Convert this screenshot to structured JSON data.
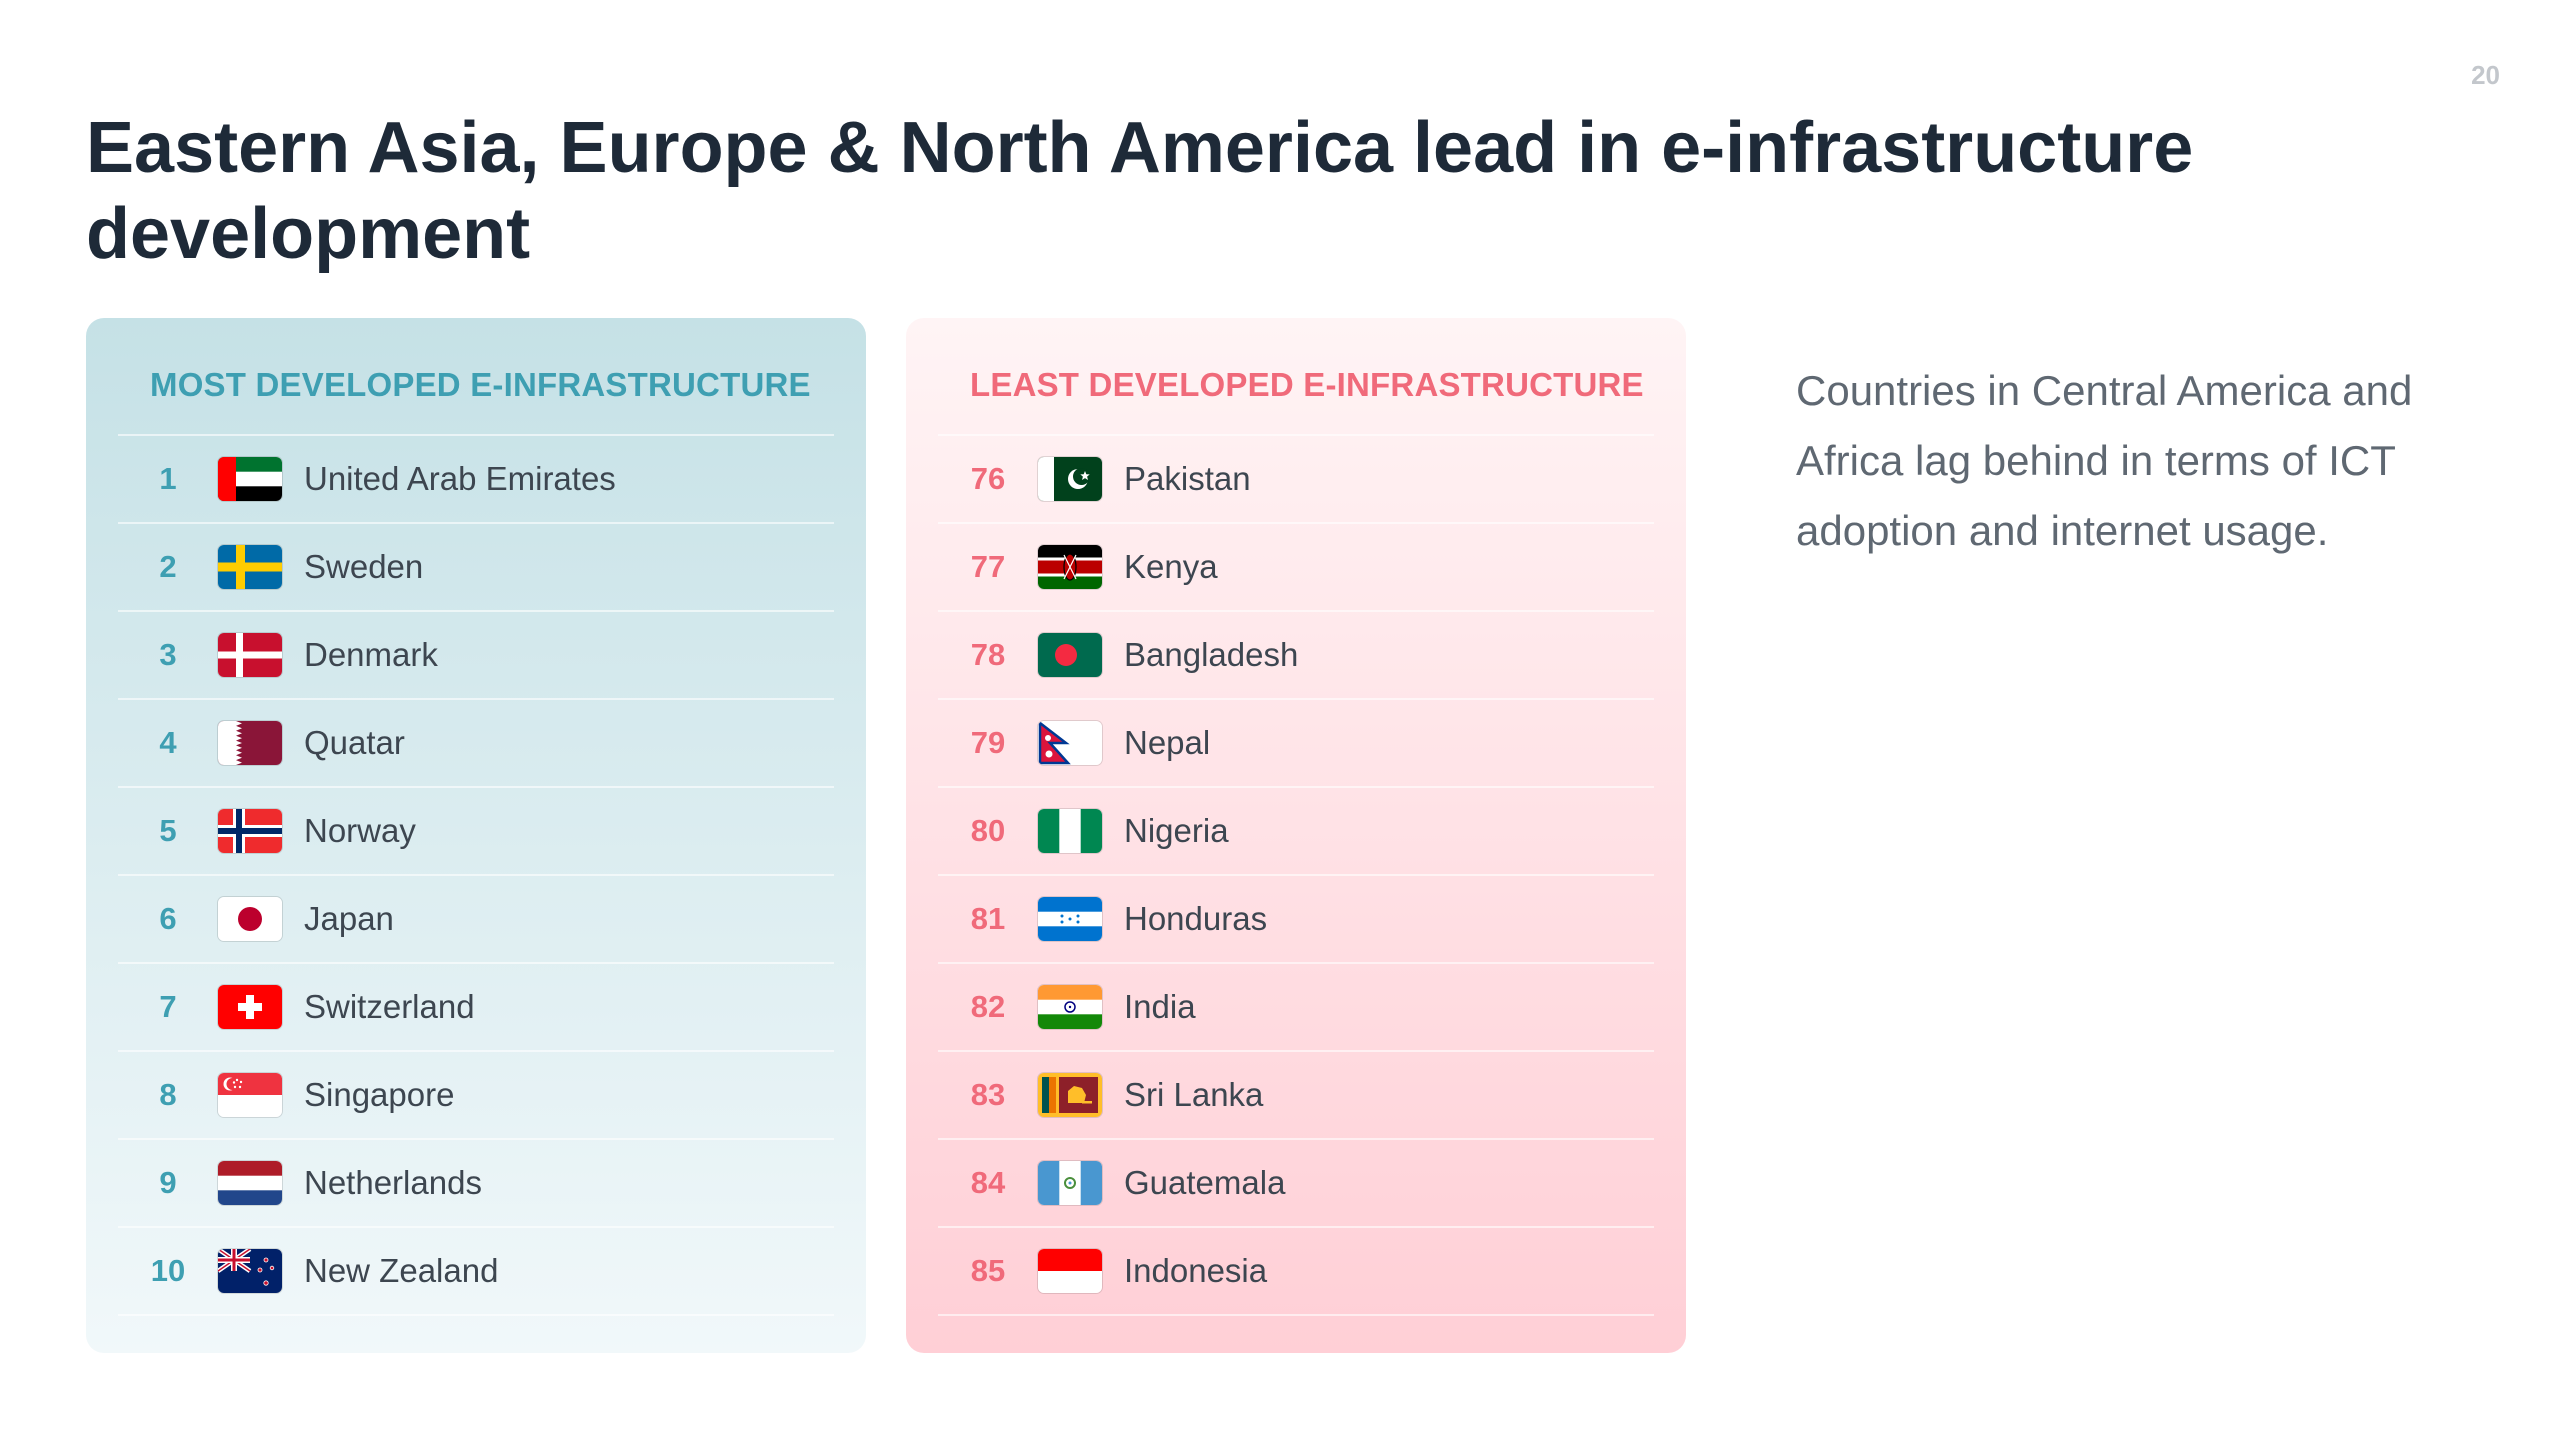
{
  "page_number": "20",
  "title": "Eastern Asia, Europe & North America lead in e-infrastructure development",
  "most": {
    "heading": "MOST DEVELOPED E-INFRASTRUCTURE",
    "rows": [
      {
        "rank": "1",
        "country": "United Arab Emirates",
        "flag": "uae-flag-icon"
      },
      {
        "rank": "2",
        "country": "Sweden",
        "flag": "sweden-flag-icon"
      },
      {
        "rank": "3",
        "country": "Denmark",
        "flag": "denmark-flag-icon"
      },
      {
        "rank": "4",
        "country": "Quatar",
        "flag": "qatar-flag-icon"
      },
      {
        "rank": "5",
        "country": "Norway",
        "flag": "norway-flag-icon"
      },
      {
        "rank": "6",
        "country": "Japan",
        "flag": "japan-flag-icon"
      },
      {
        "rank": "7",
        "country": "Switzerland",
        "flag": "switzerland-flag-icon"
      },
      {
        "rank": "8",
        "country": "Singapore",
        "flag": "singapore-flag-icon"
      },
      {
        "rank": "9",
        "country": "Netherlands",
        "flag": "netherlands-flag-icon"
      },
      {
        "rank": "10",
        "country": "New Zealand",
        "flag": "new-zealand-flag-icon"
      }
    ]
  },
  "least": {
    "heading": "LEAST DEVELOPED E-INFRASTRUCTURE",
    "rows": [
      {
        "rank": "76",
        "country": "Pakistan",
        "flag": "pakistan-flag-icon"
      },
      {
        "rank": "77",
        "country": "Kenya",
        "flag": "kenya-flag-icon"
      },
      {
        "rank": "78",
        "country": "Bangladesh",
        "flag": "bangladesh-flag-icon"
      },
      {
        "rank": "79",
        "country": "Nepal",
        "flag": "nepal-flag-icon"
      },
      {
        "rank": "80",
        "country": "Nigeria",
        "flag": "nigeria-flag-icon"
      },
      {
        "rank": "81",
        "country": "Honduras",
        "flag": "honduras-flag-icon"
      },
      {
        "rank": "82",
        "country": "India",
        "flag": "india-flag-icon"
      },
      {
        "rank": "83",
        "country": "Sri Lanka",
        "flag": "sri-lanka-flag-icon"
      },
      {
        "rank": "84",
        "country": "Guatemala",
        "flag": "guatemala-flag-icon"
      },
      {
        "rank": "85",
        "country": "Indonesia",
        "flag": "indonesia-flag-icon"
      }
    ]
  },
  "side_text": "Countries in Central America and Africa lag behind in terms of ICT adoption and internet usage.",
  "colors": {
    "most_accent": "#3e9fb2",
    "least_accent": "#f06a7a",
    "title": "#1e2a38"
  }
}
